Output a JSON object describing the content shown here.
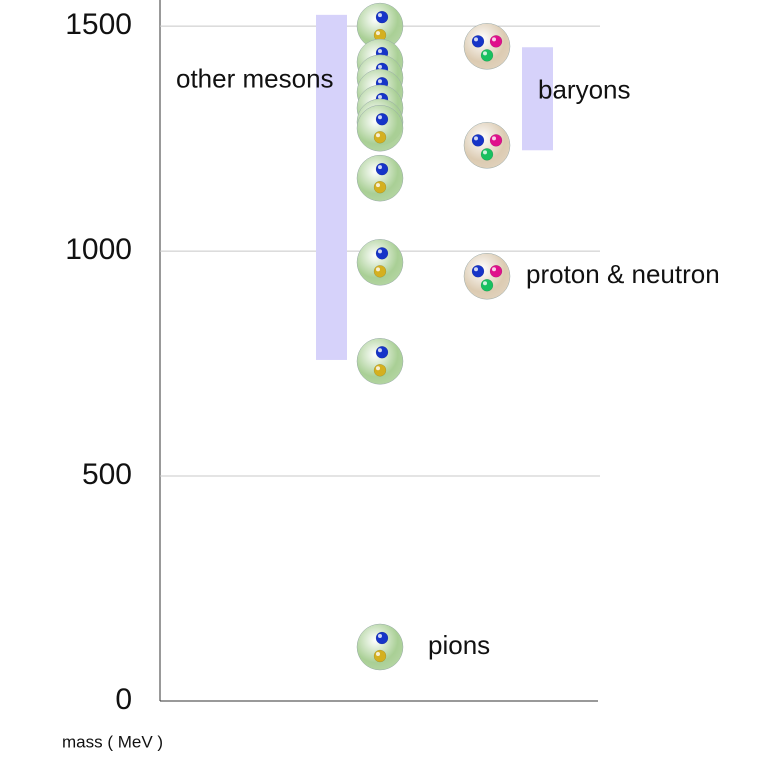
{
  "chart_data": {
    "type": "scatter",
    "y_label": "mass ( MeV )",
    "ylim": [
      0,
      1558
    ],
    "yticks": [
      0,
      500,
      1000,
      1500
    ],
    "grid": true,
    "series": [
      {
        "color": "#a9cf95",
        "quark_colors": [
          "#1634c8",
          "#d4b020"
        ],
        "values": [
          1500,
          1420,
          1385,
          1353,
          1318,
          1287,
          1273,
          1162,
          975,
          755,
          120
        ]
      },
      {
        "color": "#dccbb2",
        "quark_colors": [
          "#1634c8",
          "#e0108c",
          "#18c060"
        ],
        "values": [
          1455,
          1235,
          944
        ]
      }
    ],
    "ranges": [
      {
        "label": "other mesons",
        "from": 758,
        "to": 1525,
        "color": "#d6d2fa"
      },
      {
        "label": "baryons",
        "from": 1224,
        "to": 1453,
        "color": "#d6d2fa"
      }
    ],
    "annotations": [
      {
        "text": "proton & neutron",
        "y": 944
      },
      {
        "text": "pions",
        "y": 120
      }
    ]
  }
}
